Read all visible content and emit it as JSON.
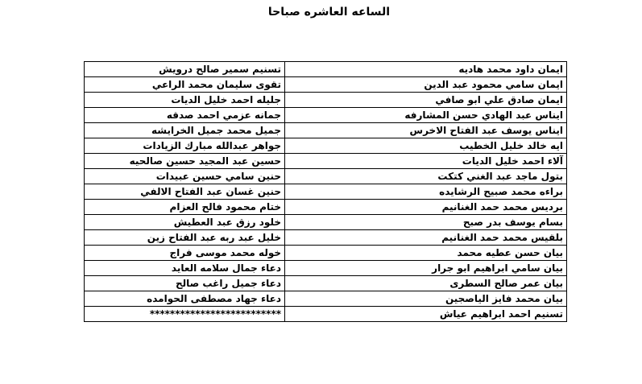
{
  "title": "الساعه العاشره صباحا",
  "table": {
    "rows": [
      {
        "right": "ايمان داود محمد هاديه",
        "left": "تسنيم سمير صالح درويش"
      },
      {
        "right": "ايمان سامي محمود عبد الدين",
        "left": "تقوى سليمان محمد الراعي"
      },
      {
        "right": "ايمان صادق علي ابو صافي",
        "left": "جليله احمد خليل الديات"
      },
      {
        "right": "ايناس عبد الهادي حسن المشارفه",
        "left": "جمانه عزمي احمد صدقه"
      },
      {
        "right": "ايناس يوسف عبد الفتاح الاخرس",
        "left": "جميل محمد جميل الخرايشه"
      },
      {
        "right": "ايه خالد خليل الخطيب",
        "left": "جواهر عبدالله مبارك الزيادات"
      },
      {
        "right": "آلاء احمد خليل الديات",
        "left": "حسين عبد المجيد حسين صالحيه"
      },
      {
        "right": "بتول ماجد عبد الغني كتكت",
        "left": "حنين سامي حسين عبيدات"
      },
      {
        "right": "براءه محمد صبيح الرشايده",
        "left": "حنين غسان عبد الفتاح الالفي"
      },
      {
        "right": "برديس محمد حمد الغنانيم",
        "left": "ختام محمود فالح العزام"
      },
      {
        "right": "بسام يوسف بدر صبح",
        "left": "خلود رزق عبد العطيش"
      },
      {
        "right": "بلقيس محمد حمد الغنانيم",
        "left": "خليل عبد ربه عبد الفتاح زين"
      },
      {
        "right": "بيان حسن عطيه محمد",
        "left": "خوله محمد موسى فراج"
      },
      {
        "right": "بيان سامي ابراهيم ابو جرار",
        "left": "دعاء جمال سلامه العايد"
      },
      {
        "right": "بيان عمر صالح السطرى",
        "left": "دعاء جميل راغب صالح"
      },
      {
        "right": "بيان محمد فايز الياصجين",
        "left": "دعاء جهاد مصطفى الحوامده"
      },
      {
        "right": "تسنيم احمد ابراهيم عياش",
        "left": "**************************"
      }
    ]
  }
}
